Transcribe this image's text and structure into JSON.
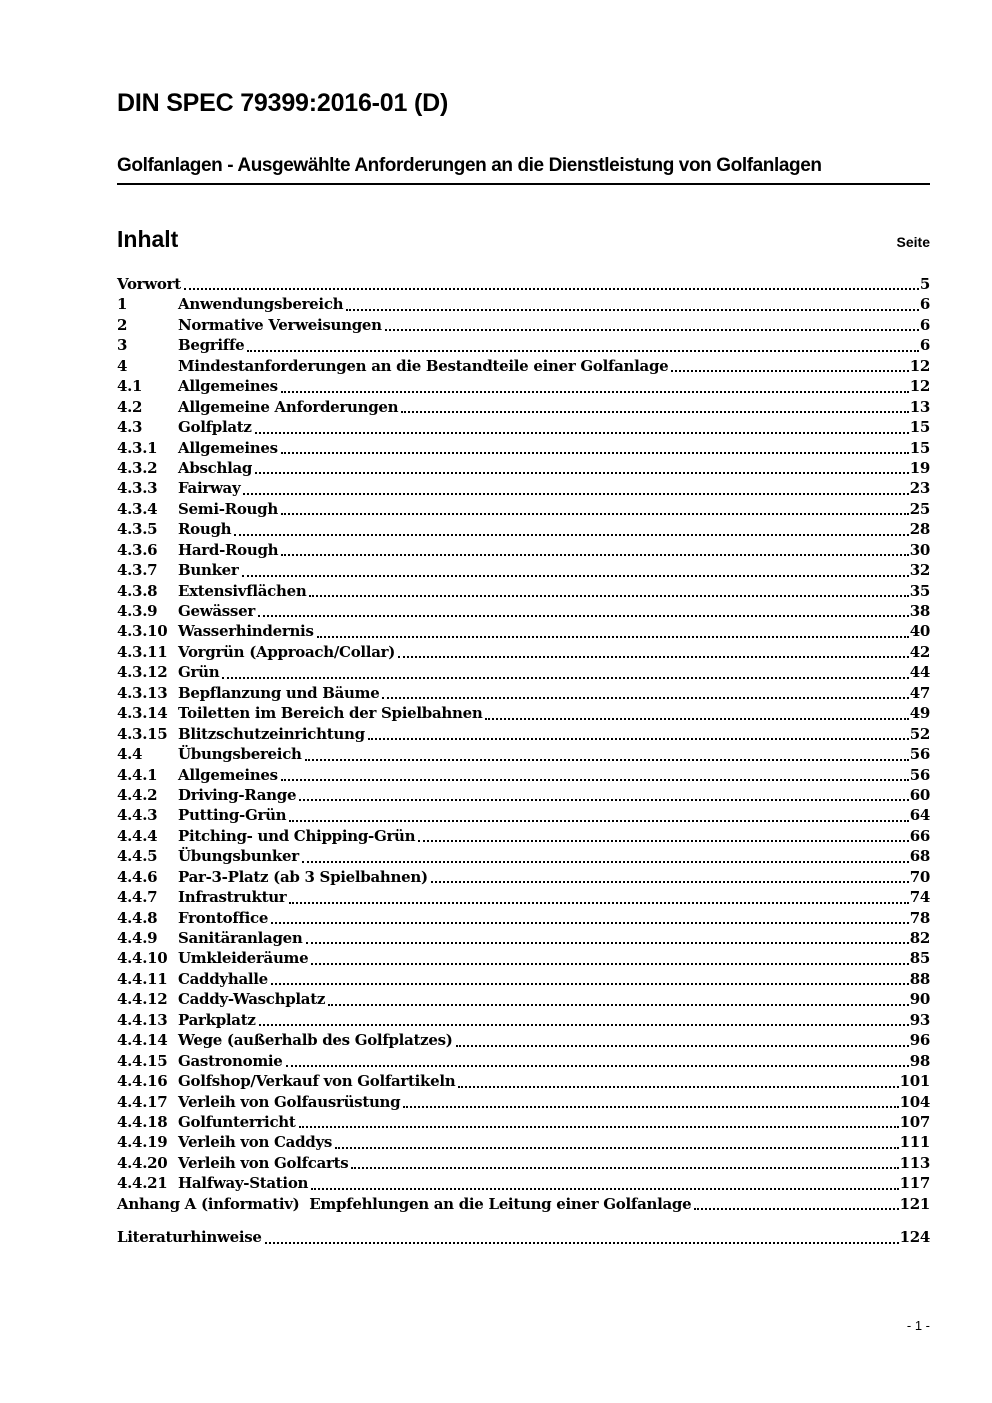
{
  "document": {
    "title": "DIN SPEC 79399:2016-01 (D)",
    "subtitle": "Golfanlagen - Ausgewählte Anforderungen an die Dienstleistung von Golfanlagen",
    "footer_page_number": "- 1 -"
  },
  "toc": {
    "heading": "Inhalt",
    "page_column_label": "Seite",
    "entries": [
      {
        "num": "",
        "title": "Vorwort",
        "page": "5"
      },
      {
        "num": "1",
        "title": "Anwendungsbereich",
        "page": "6"
      },
      {
        "num": "2",
        "title": "Normative Verweisungen",
        "page": "6"
      },
      {
        "num": "3",
        "title": "Begriffe",
        "page": "6"
      },
      {
        "num": "4",
        "title": "Mindestanforderungen an die Bestandteile einer Golfanlage",
        "page": "12"
      },
      {
        "num": "4.1",
        "title": "Allgemeines",
        "page": "12"
      },
      {
        "num": "4.2",
        "title": "Allgemeine Anforderungen",
        "page": "13"
      },
      {
        "num": "4.3",
        "title": "Golfplatz",
        "page": "15"
      },
      {
        "num": "4.3.1",
        "title": "Allgemeines",
        "page": "15"
      },
      {
        "num": "4.3.2",
        "title": "Abschlag",
        "page": "19"
      },
      {
        "num": "4.3.3",
        "title": "Fairway",
        "page": "23"
      },
      {
        "num": "4.3.4",
        "title": "Semi-Rough",
        "page": "25"
      },
      {
        "num": "4.3.5",
        "title": "Rough",
        "page": "28"
      },
      {
        "num": "4.3.6",
        "title": "Hard-Rough",
        "page": "30"
      },
      {
        "num": "4.3.7",
        "title": "Bunker",
        "page": "32"
      },
      {
        "num": "4.3.8",
        "title": "Extensivflächen",
        "page": "35"
      },
      {
        "num": "4.3.9",
        "title": "Gewässer",
        "page": "38"
      },
      {
        "num": "4.3.10",
        "title": "Wasserhindernis",
        "page": "40"
      },
      {
        "num": "4.3.11",
        "title": "Vorgrün (Approach/Collar)",
        "page": "42"
      },
      {
        "num": "4.3.12",
        "title": "Grün",
        "page": "44"
      },
      {
        "num": "4.3.13",
        "title": "Bepflanzung und Bäume",
        "page": "47"
      },
      {
        "num": "4.3.14",
        "title": "Toiletten im Bereich der Spielbahnen",
        "page": "49"
      },
      {
        "num": "4.3.15",
        "title": "Blitzschutzeinrichtung",
        "page": "52"
      },
      {
        "num": "4.4",
        "title": "Übungsbereich",
        "page": "56"
      },
      {
        "num": "4.4.1",
        "title": "Allgemeines",
        "page": "56"
      },
      {
        "num": "4.4.2",
        "title": "Driving-Range",
        "page": "60"
      },
      {
        "num": "4.4.3",
        "title": "Putting-Grün",
        "page": "64"
      },
      {
        "num": "4.4.4",
        "title": "Pitching- und Chipping-Grün",
        "page": "66"
      },
      {
        "num": "4.4.5",
        "title": "Übungsbunker",
        "page": "68"
      },
      {
        "num": "4.4.6",
        "title": "Par-3-Platz (ab 3 Spielbahnen)",
        "page": "70"
      },
      {
        "num": "4.4.7",
        "title": "Infrastruktur",
        "page": "74"
      },
      {
        "num": "4.4.8",
        "title": "Frontoffice",
        "page": "78"
      },
      {
        "num": "4.4.9",
        "title": "Sanitäranlagen",
        "page": "82"
      },
      {
        "num": "4.4.10",
        "title": "Umkleideräume",
        "page": "85"
      },
      {
        "num": "4.4.11",
        "title": "Caddyhalle",
        "page": "88"
      },
      {
        "num": "4.4.12",
        "title": "Caddy-Waschplatz",
        "page": "90"
      },
      {
        "num": "4.4.13",
        "title": "Parkplatz",
        "page": "93"
      },
      {
        "num": "4.4.14",
        "title": "Wege (außerhalb des Golfplatzes)",
        "page": "96"
      },
      {
        "num": "4.4.15",
        "title": "Gastronomie",
        "page": "98"
      },
      {
        "num": "4.4.16",
        "title": "Golfshop/Verkauf von Golfartikeln",
        "page": "101"
      },
      {
        "num": "4.4.17",
        "title": "Verleih von Golfausrüstung",
        "page": "104"
      },
      {
        "num": "4.4.18",
        "title": "Golfunterricht",
        "page": "107"
      },
      {
        "num": "4.4.19",
        "title": "Verleih von Caddys",
        "page": "111"
      },
      {
        "num": "4.4.20",
        "title": "Verleih von Golfcarts",
        "page": "113"
      },
      {
        "num": "4.4.21",
        "title": "Halfway-Station",
        "page": "117"
      },
      {
        "num": "",
        "title": "Anhang A (informativ)  Empfehlungen an die Leitung einer Golfanlage",
        "page": "121"
      },
      {
        "num": "",
        "title": "Literaturhinweise",
        "page": "124",
        "gap_before": true
      }
    ]
  },
  "colors": {
    "text": "#000000",
    "background": "#ffffff"
  }
}
